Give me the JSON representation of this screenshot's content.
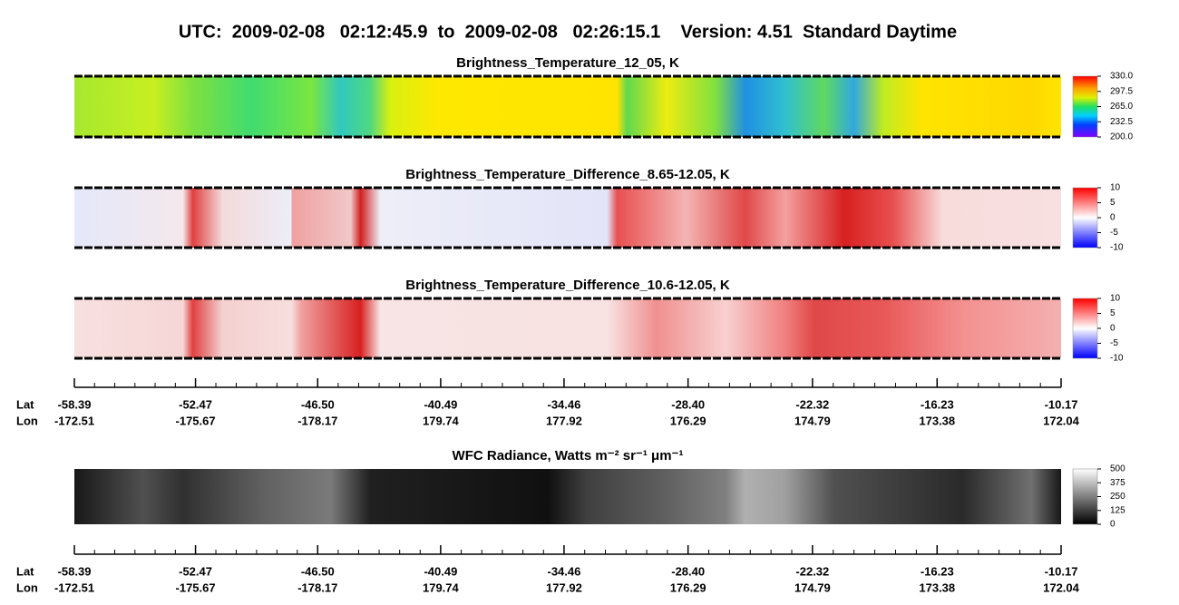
{
  "chart_data": {
    "type": "heatmap",
    "title": "UTC:  2009-02-08   02:12:45.9  to  2009-02-08   02:26:15.1    Version: 4.51  Standard Daytime",
    "panels": [
      {
        "title": "Brightness_Temperature_12_05, K",
        "clim": [
          200,
          330
        ],
        "cticks": [
          {
            "value": 330,
            "label": "330.0"
          },
          {
            "value": 297.5,
            "label": "297.5"
          },
          {
            "value": 265,
            "label": "265.0"
          },
          {
            "value": 232.5,
            "label": "232.5"
          },
          {
            "value": 200,
            "label": "200.0"
          }
        ]
      },
      {
        "title": "Brightness_Temperature_Difference_8.65-12.05, K",
        "clim": [
          -10,
          10
        ],
        "cticks": [
          10,
          5,
          0,
          -5,
          -10
        ]
      },
      {
        "title": "Brightness_Temperature_Difference_10.6-12.05, K",
        "clim": [
          -10,
          10
        ],
        "cticks": [
          10,
          5,
          0,
          -5,
          -10
        ]
      },
      {
        "title": "WFC Radiance, Watts m⁻² sr⁻¹ μm⁻¹",
        "clim": [
          0,
          500
        ],
        "cticks": [
          500,
          375,
          250,
          125,
          0
        ]
      }
    ],
    "axes": [
      {
        "row_labels": [
          "Lat",
          "Lon"
        ],
        "xlim": [
          -58.39,
          -10.17
        ],
        "lat": [
          -58.39,
          -52.47,
          -46.5,
          -40.49,
          -34.46,
          -28.4,
          -22.32,
          -16.23,
          -10.17
        ],
        "lat_labels": [
          "-58.39",
          "-52.47",
          "-46.50",
          "-40.49",
          "-34.46",
          "-28.40",
          "-22.32",
          "-16.23",
          "-10.17"
        ],
        "lon": [
          "-172.51",
          "-175.67",
          "-178.17",
          "179.74",
          "177.92",
          "176.29",
          "174.79",
          "173.38",
          "172.04"
        ]
      },
      {
        "row_labels": [
          "Lat",
          "Lon"
        ],
        "xlim": [
          -58.39,
          -10.17
        ],
        "lat": [
          -58.39,
          -52.47,
          -46.5,
          -40.49,
          -34.46,
          -28.4,
          -22.32,
          -16.23,
          -10.17
        ],
        "lat_labels": [
          "-58.39",
          "-52.47",
          "-46.50",
          "-40.49",
          "-34.46",
          "-28.40",
          "-22.32",
          "-16.23",
          "-10.17"
        ],
        "lon": [
          "-172.51",
          "-175.67",
          "-178.17",
          "179.74",
          "177.92",
          "176.29",
          "174.79",
          "173.38",
          "172.04"
        ]
      }
    ]
  }
}
